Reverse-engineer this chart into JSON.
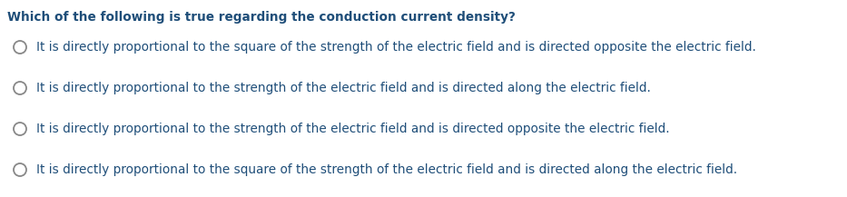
{
  "background_color": "#ffffff",
  "question": "Which of the following is true regarding the conduction current density?",
  "question_color": "#1f4e79",
  "options": [
    "It is directly proportional to the square of the strength of the electric field and is directed opposite the electric field.",
    "It is directly proportional to the strength of the electric field and is directed along the electric field.",
    "It is directly proportional to the strength of the electric field and is directed opposite the electric field.",
    "It is directly proportional to the square of the strength of the electric field and is directed along the electric field."
  ],
  "option_color": "#1f4e79",
  "circle_edge_color": "#888888",
  "circle_face_color": "#ffffff",
  "question_fontsize": 9.8,
  "option_fontsize": 9.8,
  "fig_width": 9.33,
  "fig_height": 2.17,
  "dpi": 100
}
